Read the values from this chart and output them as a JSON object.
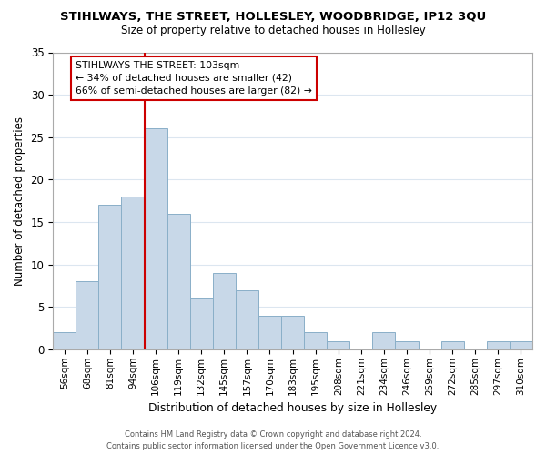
{
  "title": "STIHLWAYS, THE STREET, HOLLESLEY, WOODBRIDGE, IP12 3QU",
  "subtitle": "Size of property relative to detached houses in Hollesley",
  "xlabel": "Distribution of detached houses by size in Hollesley",
  "ylabel": "Number of detached properties",
  "bar_color": "#c8d8e8",
  "bar_edge_color": "#8aafc8",
  "bins": [
    "56sqm",
    "68sqm",
    "81sqm",
    "94sqm",
    "106sqm",
    "119sqm",
    "132sqm",
    "145sqm",
    "157sqm",
    "170sqm",
    "183sqm",
    "195sqm",
    "208sqm",
    "221sqm",
    "234sqm",
    "246sqm",
    "259sqm",
    "272sqm",
    "285sqm",
    "297sqm",
    "310sqm"
  ],
  "values": [
    2,
    8,
    17,
    18,
    26,
    16,
    6,
    9,
    7,
    4,
    4,
    2,
    1,
    0,
    2,
    1,
    0,
    1,
    0,
    1,
    1
  ],
  "ylim": [
    0,
    35
  ],
  "yticks": [
    0,
    5,
    10,
    15,
    20,
    25,
    30,
    35
  ],
  "marker_bin_index": 4,
  "marker_label_line1": "STIHLWAYS THE STREET: 103sqm",
  "marker_label_line2": "← 34% of detached houses are smaller (42)",
  "marker_label_line3": "66% of semi-detached houses are larger (82) →",
  "annotation_box_color": "#ffffff",
  "annotation_box_edge": "#cc0000",
  "marker_line_color": "#cc0000",
  "footer_line1": "Contains HM Land Registry data © Crown copyright and database right 2024.",
  "footer_line2": "Contains public sector information licensed under the Open Government Licence v3.0.",
  "background_color": "#ffffff",
  "grid_color": "#dce6f0"
}
